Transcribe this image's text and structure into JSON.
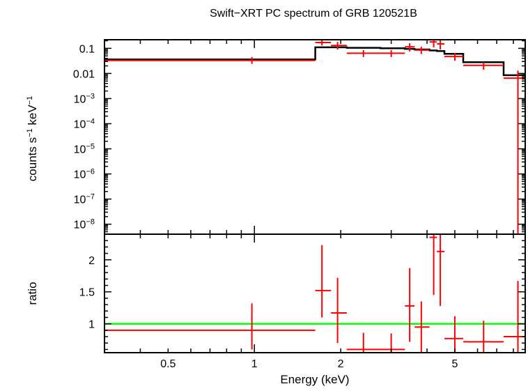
{
  "chart_data": [
    {
      "type": "line",
      "panel": "spectrum",
      "title": "Swift−XRT PC spectrum of GRB 120521B",
      "xlabel": "",
      "ylabel_base": "counts s",
      "ylabel_mid": " keV",
      "ylabel_exp": "−1",
      "x_scale": "log",
      "y_scale": "log",
      "xlim": [
        0.3,
        8.8
      ],
      "ylim": [
        4e-09,
        0.22
      ],
      "grid": false,
      "y_ticks": [
        {
          "value": 0.1,
          "label": "0.1"
        },
        {
          "value": 0.01,
          "label": "0.01"
        },
        {
          "value": 0.001,
          "base": "10",
          "exp": "−3"
        },
        {
          "value": 0.0001,
          "base": "10",
          "exp": "−4"
        },
        {
          "value": 1e-05,
          "base": "10",
          "exp": "−5"
        },
        {
          "value": 1e-06,
          "base": "10",
          "exp": "−6"
        },
        {
          "value": 1e-07,
          "base": "10",
          "exp": "−7"
        },
        {
          "value": 1e-08,
          "base": "10",
          "exp": "−8"
        }
      ],
      "series": [
        {
          "kind": "data",
          "color": "#ff0000",
          "points": [
            {
              "x": 0.98,
              "xlo": 0.3,
              "xhi": 1.63,
              "y": 0.033,
              "ylo": 0.024,
              "yhi": 0.045
            },
            {
              "x": 1.72,
              "xlo": 1.63,
              "xhi": 1.85,
              "y": 0.17,
              "ylo": 0.13,
              "yhi": 0.215
            },
            {
              "x": 1.95,
              "xlo": 1.85,
              "xhi": 2.1,
              "y": 0.13,
              "ylo": 0.09,
              "yhi": 0.18
            },
            {
              "x": 2.4,
              "xlo": 2.1,
              "xhi": 2.75,
              "y": 0.064,
              "ylo": 0.045,
              "yhi": 0.085
            },
            {
              "x": 3.0,
              "xlo": 2.75,
              "xhi": 3.35,
              "y": 0.064,
              "ylo": 0.045,
              "yhi": 0.085
            },
            {
              "x": 3.48,
              "xlo": 3.35,
              "xhi": 3.62,
              "y": 0.115,
              "ylo": 0.075,
              "yhi": 0.16
            },
            {
              "x": 3.82,
              "xlo": 3.62,
              "xhi": 4.08,
              "y": 0.085,
              "ylo": 0.06,
              "yhi": 0.115
            },
            {
              "x": 4.22,
              "xlo": 4.08,
              "xhi": 4.33,
              "y": 0.18,
              "ylo": 0.11,
              "yhi": 0.26
            },
            {
              "x": 4.45,
              "xlo": 4.33,
              "xhi": 4.6,
              "y": 0.15,
              "ylo": 0.09,
              "yhi": 0.22
            },
            {
              "x": 5.0,
              "xlo": 4.6,
              "xhi": 5.35,
              "y": 0.047,
              "ylo": 0.032,
              "yhi": 0.065
            },
            {
              "x": 6.3,
              "xlo": 5.35,
              "xhi": 7.4,
              "y": 0.021,
              "ylo": 0.014,
              "yhi": 0.028
            },
            {
              "x": 8.3,
              "xlo": 7.4,
              "xhi": 8.8,
              "y": 0.0065,
              "ylo": 1e-12,
              "yhi": 0.013
            }
          ]
        },
        {
          "kind": "model",
          "color": "#000000",
          "step_edges": [
            0.3,
            1.63,
            1.85,
            2.1,
            2.75,
            3.35,
            3.62,
            4.08,
            4.33,
            4.6,
            5.35,
            7.4,
            8.8
          ],
          "step_values": [
            0.036,
            0.11,
            0.11,
            0.105,
            0.1,
            0.095,
            0.09,
            0.082,
            0.078,
            0.06,
            0.028,
            0.0085
          ]
        }
      ]
    },
    {
      "type": "scatter",
      "panel": "ratio",
      "xlabel": "Energy (keV)",
      "ylabel": "ratio",
      "x_scale": "log",
      "y_scale": "linear",
      "xlim": [
        0.3,
        8.8
      ],
      "ylim": [
        0.55,
        2.4
      ],
      "grid": false,
      "x_ticks": [
        {
          "value": 0.5,
          "label": "0.5"
        },
        {
          "value": 1,
          "label": "1"
        },
        {
          "value": 2,
          "label": "2"
        },
        {
          "value": 5,
          "label": "5"
        }
      ],
      "y_ticks": [
        {
          "value": 1,
          "label": "1"
        },
        {
          "value": 1.5,
          "label": "1.5"
        },
        {
          "value": 2,
          "label": "2"
        }
      ],
      "reference_line": {
        "y": 1,
        "color": "#00ff00"
      },
      "series": [
        {
          "kind": "data",
          "color": "#ff0000",
          "points": [
            {
              "x": 0.98,
              "xlo": 0.3,
              "xhi": 1.63,
              "y": 0.9,
              "ylo": 0.6,
              "yhi": 1.32
            },
            {
              "x": 1.72,
              "xlo": 1.63,
              "xhi": 1.85,
              "y": 1.52,
              "ylo": 1.1,
              "yhi": 2.23
            },
            {
              "x": 1.95,
              "xlo": 1.85,
              "xhi": 2.1,
              "y": 1.17,
              "ylo": 0.7,
              "yhi": 1.72
            },
            {
              "x": 2.4,
              "xlo": 2.1,
              "xhi": 2.75,
              "y": 0.6,
              "ylo": 0.55,
              "yhi": 0.86
            },
            {
              "x": 3.0,
              "xlo": 2.75,
              "xhi": 3.35,
              "y": 0.6,
              "ylo": 0.55,
              "yhi": 0.85
            },
            {
              "x": 3.48,
              "xlo": 3.35,
              "xhi": 3.62,
              "y": 1.28,
              "ylo": 0.72,
              "yhi": 1.87
            },
            {
              "x": 3.82,
              "xlo": 3.62,
              "xhi": 4.08,
              "y": 0.95,
              "ylo": 0.55,
              "yhi": 1.35
            },
            {
              "x": 4.22,
              "xlo": 4.08,
              "xhi": 4.33,
              "y": 2.35,
              "ylo": 1.45,
              "yhi": 2.4
            },
            {
              "x": 4.45,
              "xlo": 4.33,
              "xhi": 4.6,
              "y": 2.13,
              "ylo": 1.28,
              "yhi": 2.4
            },
            {
              "x": 5.0,
              "xlo": 4.6,
              "xhi": 5.35,
              "y": 0.77,
              "ylo": 0.55,
              "yhi": 1.12
            },
            {
              "x": 6.3,
              "xlo": 5.35,
              "xhi": 7.4,
              "y": 0.72,
              "ylo": 0.55,
              "yhi": 1.05
            },
            {
              "x": 8.3,
              "xlo": 7.4,
              "xhi": 8.8,
              "y": 0.8,
              "ylo": 0.55,
              "yhi": 1.67
            }
          ]
        }
      ]
    }
  ]
}
